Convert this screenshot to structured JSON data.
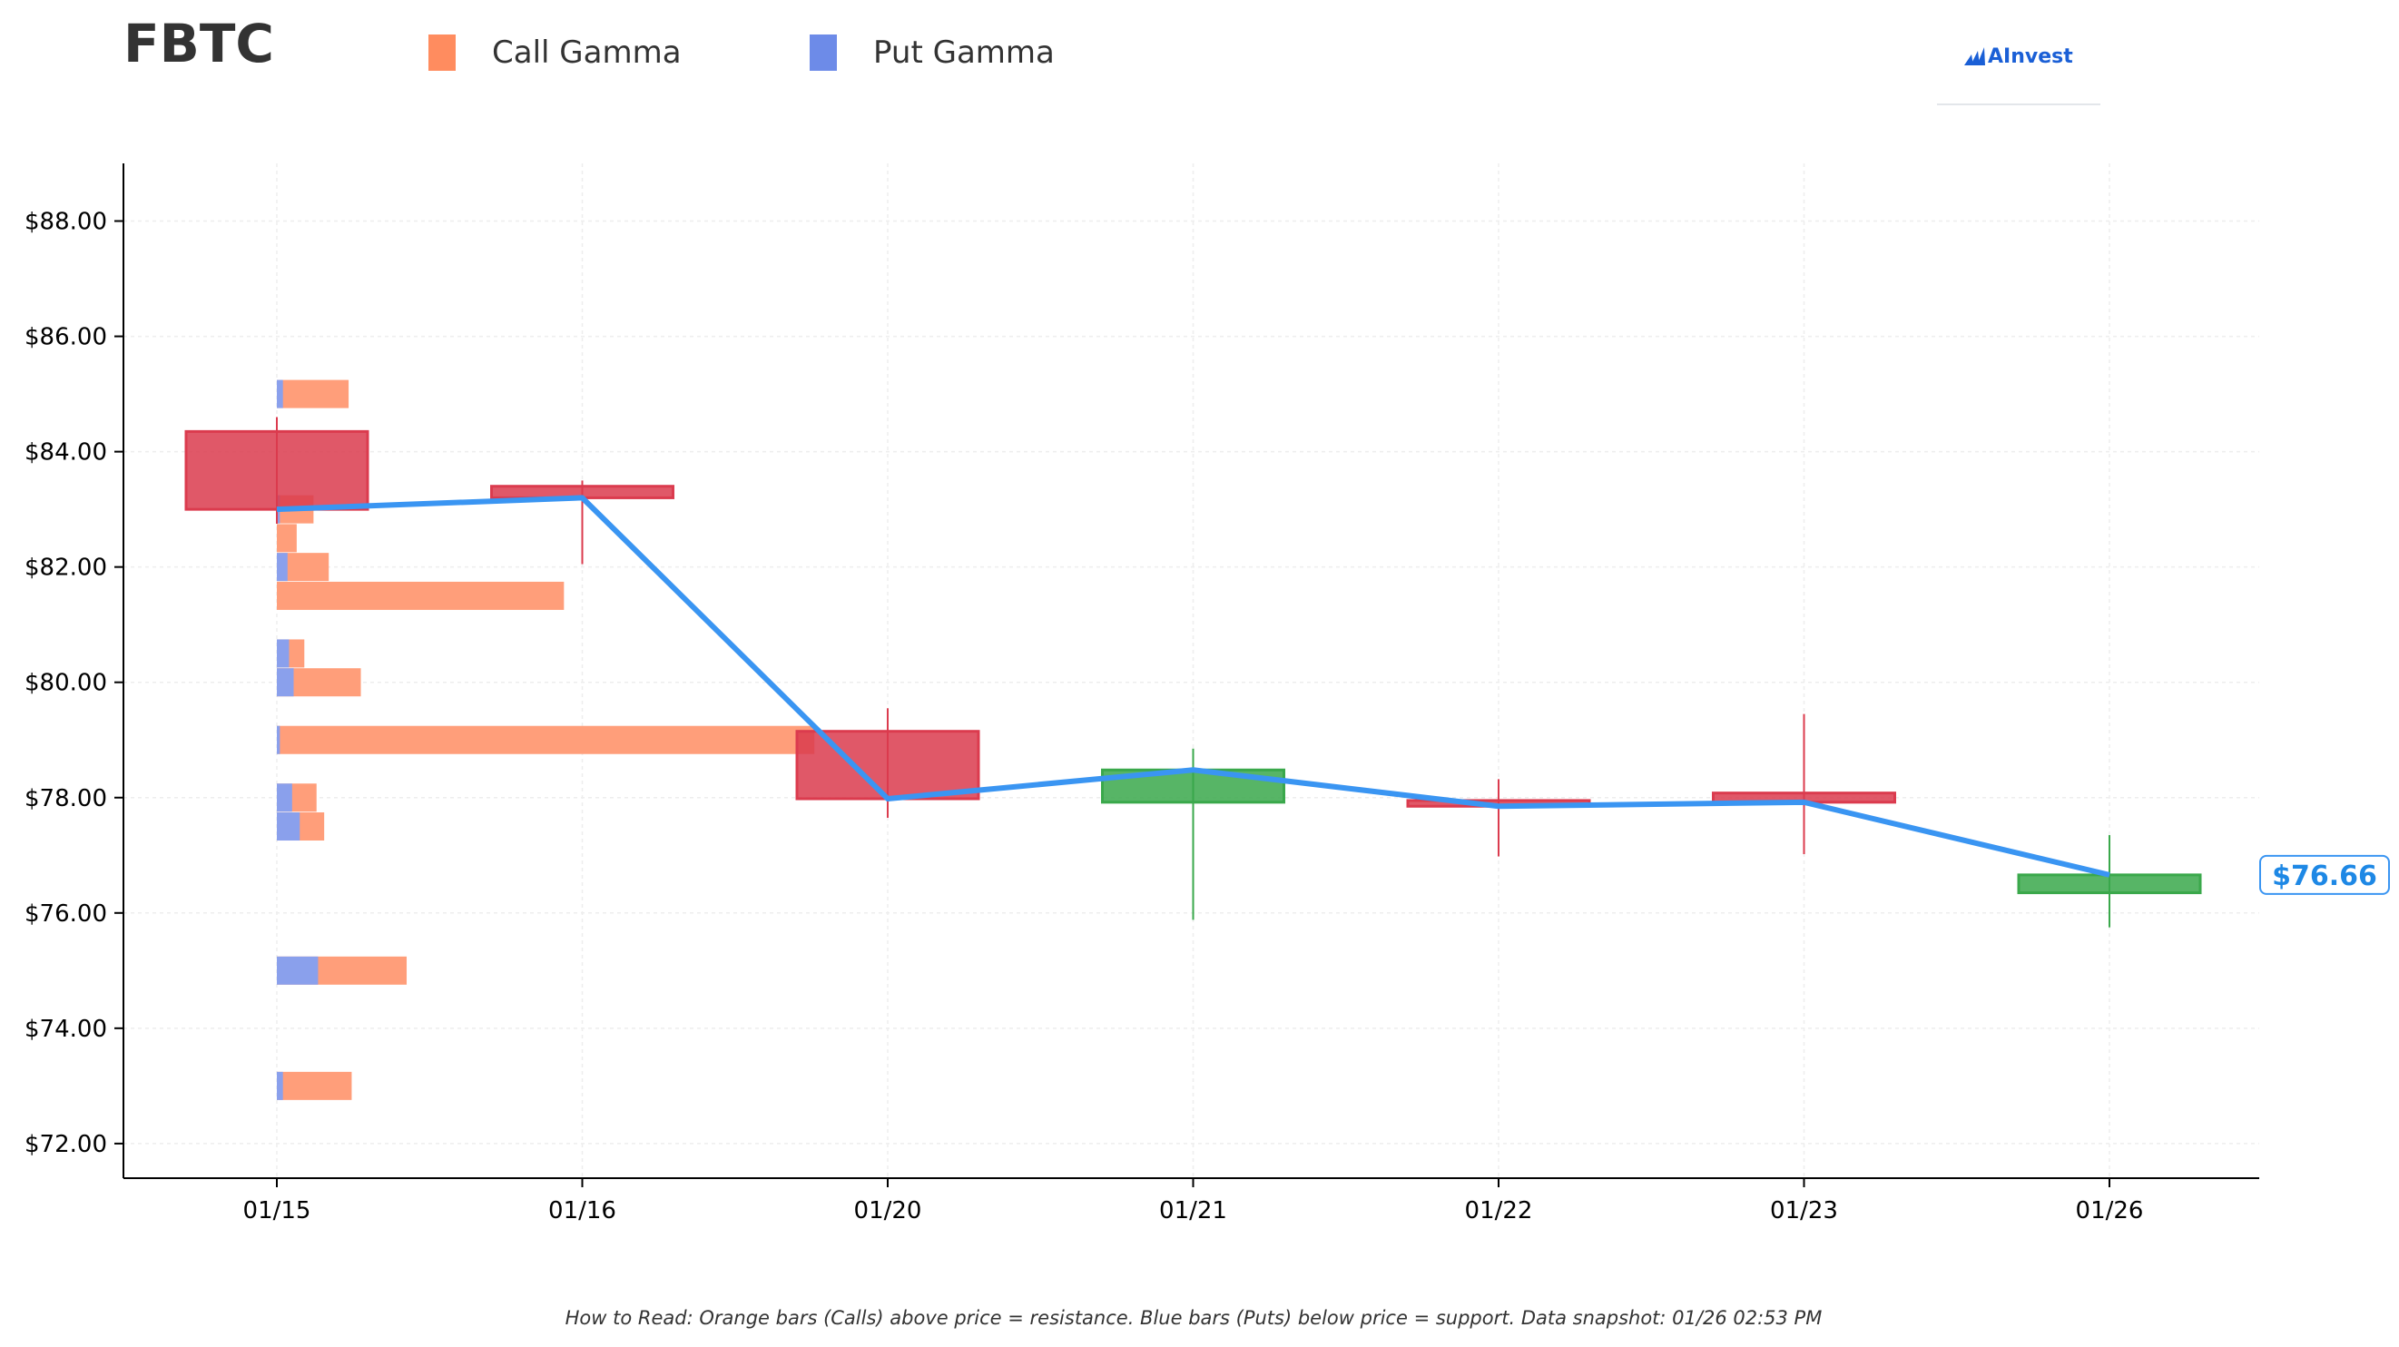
{
  "title": "FBTC",
  "legend": [
    {
      "label": "Call Gamma",
      "color": "#ff8c5f"
    },
    {
      "label": "Put Gamma",
      "color": "#6d8be8"
    }
  ],
  "logo": {
    "text": "AInvest",
    "color": "#1a5fd6"
  },
  "footnote": "How to Read: Orange bars (Calls) above price = resistance. Blue bars (Puts) below price = support. Data snapshot: 01/26 02:53 PM",
  "chart_data": {
    "type": "candlestick",
    "categories": [
      "01/15",
      "01/16",
      "01/20",
      "01/21",
      "01/22",
      "01/23",
      "01/26"
    ],
    "ylim": [
      71.4,
      89.0
    ],
    "yticks": [
      72,
      74,
      76,
      78,
      80,
      82,
      84,
      86,
      88
    ],
    "ytick_labels": [
      "$72.00",
      "$74.00",
      "$76.00",
      "$78.00",
      "$80.00",
      "$82.00",
      "$84.00",
      "$86.00",
      "$88.00"
    ],
    "grid": true,
    "candles": [
      {
        "date": "01/15",
        "open": 84.35,
        "high": 84.6,
        "low": 82.75,
        "close": 83.0,
        "direction": "down"
      },
      {
        "date": "01/16",
        "open": 83.4,
        "high": 83.5,
        "low": 82.05,
        "close": 83.2,
        "direction": "down"
      },
      {
        "date": "01/20",
        "open": 79.15,
        "high": 79.55,
        "low": 77.65,
        "close": 77.98,
        "direction": "down"
      },
      {
        "date": "01/21",
        "open": 77.92,
        "high": 78.85,
        "low": 75.88,
        "close": 78.48,
        "direction": "up"
      },
      {
        "date": "01/22",
        "open": 77.95,
        "high": 78.32,
        "low": 76.98,
        "close": 77.85,
        "direction": "down"
      },
      {
        "date": "01/23",
        "open": 78.08,
        "high": 79.45,
        "low": 77.02,
        "close": 77.92,
        "direction": "down"
      },
      {
        "date": "01/26",
        "open": 76.35,
        "high": 77.35,
        "low": 75.75,
        "close": 76.66,
        "direction": "up"
      }
    ],
    "price_line": [
      83.0,
      83.2,
      77.98,
      78.48,
      77.85,
      77.92,
      76.66
    ],
    "last_price_label": "$76.66",
    "gamma_levels": [
      {
        "strike": 85.0,
        "call": 0.43,
        "put": 0.04
      },
      {
        "strike": 83.0,
        "call": 0.22,
        "put": 0.02
      },
      {
        "strike": 82.5,
        "call": 0.13,
        "put": 0.0
      },
      {
        "strike": 82.0,
        "call": 0.27,
        "put": 0.07
      },
      {
        "strike": 81.5,
        "call": 1.88,
        "put": 0.0
      },
      {
        "strike": 80.5,
        "call": 0.1,
        "put": 0.08
      },
      {
        "strike": 80.0,
        "call": 0.44,
        "put": 0.11
      },
      {
        "strike": 79.0,
        "call": 3.5,
        "put": 0.02
      },
      {
        "strike": 78.0,
        "call": 0.16,
        "put": 0.1
      },
      {
        "strike": 77.5,
        "call": 0.16,
        "put": 0.15
      },
      {
        "strike": 75.0,
        "call": 0.58,
        "put": 0.27
      },
      {
        "strike": 73.0,
        "call": 0.45,
        "put": 0.04
      }
    ],
    "colors": {
      "up": "#3aa84b",
      "down": "#db3b4e",
      "price_line": "#3a95f2",
      "call": "#ff9e7a",
      "put": "#8aa0ec",
      "grid": "#eeeeee"
    }
  }
}
